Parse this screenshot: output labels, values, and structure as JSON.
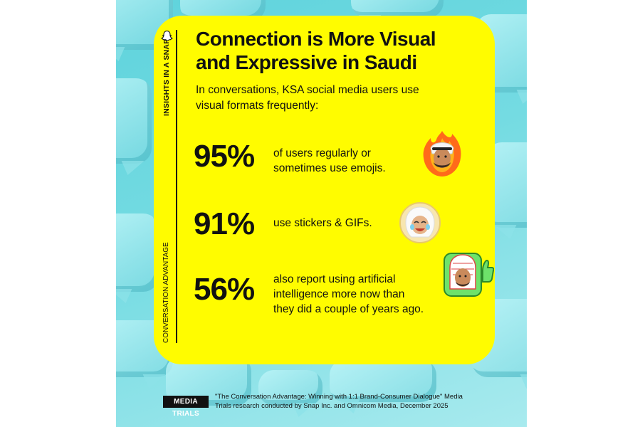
{
  "brand": {
    "vertical_top": "INSIGHTS IN A SNAP",
    "vertical_bottom": "CONVERSATION ADVANTAGE",
    "logo": "snapchat-ghost-icon"
  },
  "title_line1": "Connection is More Visual",
  "title_line2": "and Expressive in Saudi",
  "intro_line1": "In conversations, KSA social media users use",
  "intro_line2": "visual formats frequently:",
  "stats": [
    {
      "value": "95%",
      "line1": "of users regularly or",
      "line2": "sometimes use emojis.",
      "line3": "",
      "icon": "fire-man-avatar-icon"
    },
    {
      "value": "91%",
      "line1": "use stickers & GIFs.",
      "line2": "",
      "line3": "",
      "icon": "laughing-woman-avatar-icon"
    },
    {
      "value": "56%",
      "line1": "also report using artificial",
      "line2": "intelligence more now than",
      "line3": "they did a couple of years ago.",
      "icon": "thumbs-up-man-avatar-icon"
    }
  ],
  "footer": {
    "logo": "MEDIA TRIALS",
    "line1": "\"The Conversation Advantage: Winning with 1:1 Brand-Consumer Dialogue\" Media",
    "line2": "Trials research conducted by Snap Inc. and Omnicom Media, December 2025"
  },
  "colors": {
    "card": "#fffc00",
    "background": "#6fd8e0",
    "text": "#111111"
  }
}
